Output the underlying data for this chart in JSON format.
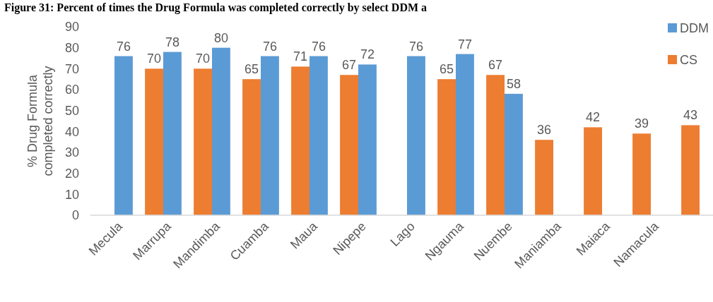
{
  "chart_data": {
    "type": "bar",
    "title": "Figure 31: Percent of times the Drug Formula was completed correctly by select DDM a",
    "ylabel": "% Drug Formula completed correctly",
    "categories": [
      "Mecula",
      "Marrupa",
      "Mandimba",
      "Cuamba",
      "Maua",
      "Nipepe",
      "Lago",
      "Ngauma",
      "Nuembe",
      "Maniamba",
      "Maiaca",
      "Namacula",
      null
    ],
    "series": [
      {
        "name": "DDM",
        "color": "#5b9bd5",
        "values": [
          76,
          78,
          80,
          76,
          76,
          72,
          76,
          77,
          58,
          null,
          null,
          null,
          null
        ]
      },
      {
        "name": "CS",
        "color": "#ed7d31",
        "values": [
          null,
          70,
          70,
          65,
          71,
          67,
          null,
          65,
          67,
          36,
          42,
          39,
          43
        ]
      }
    ],
    "ylim": [
      0,
      90
    ],
    "yticks": [
      0,
      10,
      20,
      30,
      40,
      50,
      60,
      70,
      80,
      90
    ],
    "grid": false,
    "legend": "top right",
    "data_labels": true
  }
}
